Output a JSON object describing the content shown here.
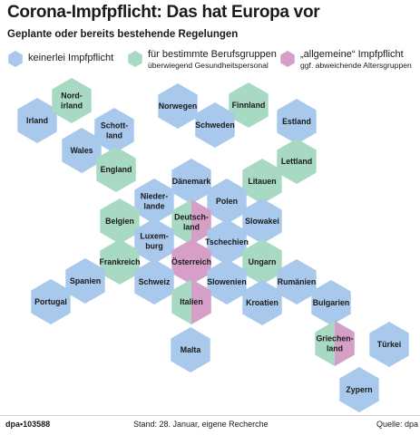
{
  "header": {
    "title": "Corona-Impfpflicht: Das hat Europa vor",
    "subtitle": "Geplante oder bereits bestehende Regelungen"
  },
  "legend": {
    "none": {
      "label": "keinerlei Impfpflicht"
    },
    "groups": {
      "label": "für bestimmte Berufsgruppen",
      "note": "überwiegend Gesundheitspersonal"
    },
    "general": {
      "label": "„allgemeine“ Impfpflicht",
      "note": "ggf. abweichende Altersgruppen"
    }
  },
  "colors": {
    "none": "#a8c8ec",
    "groups": "#a8d9c3",
    "general": "#d59fc8"
  },
  "countries": [
    {
      "name": [
        "Irland"
      ],
      "status": "none"
    },
    {
      "name": [
        "Nord-",
        "irland"
      ],
      "status": "groups"
    },
    {
      "name": [
        "Schott-",
        "land"
      ],
      "status": "none"
    },
    {
      "name": [
        "Wales"
      ],
      "status": "none"
    },
    {
      "name": [
        "England"
      ],
      "status": "groups"
    },
    {
      "name": [
        "Norwegen"
      ],
      "status": "none"
    },
    {
      "name": [
        "Finnland"
      ],
      "status": "groups"
    },
    {
      "name": [
        "Schweden"
      ],
      "status": "none"
    },
    {
      "name": [
        "Estland"
      ],
      "status": "none"
    },
    {
      "name": [
        "Lettland"
      ],
      "status": "groups"
    },
    {
      "name": [
        "Dänemark"
      ],
      "status": "none"
    },
    {
      "name": [
        "Litauen"
      ],
      "status": "groups"
    },
    {
      "name": [
        "Nieder-",
        "lande"
      ],
      "status": "none"
    },
    {
      "name": [
        "Polen"
      ],
      "status": "none"
    },
    {
      "name": [
        "Belgien"
      ],
      "status": "groups"
    },
    {
      "name": [
        "Deutsch-",
        "land"
      ],
      "status": "groups",
      "split": "general"
    },
    {
      "name": [
        "Slowakei"
      ],
      "status": "none"
    },
    {
      "name": [
        "Luxem-",
        "burg"
      ],
      "status": "none"
    },
    {
      "name": [
        "Tschechien"
      ],
      "status": "none"
    },
    {
      "name": [
        "Frankreich"
      ],
      "status": "groups"
    },
    {
      "name": [
        "Österreich"
      ],
      "status": "general"
    },
    {
      "name": [
        "Ungarn"
      ],
      "status": "groups"
    },
    {
      "name": [
        "Spanien"
      ],
      "status": "none"
    },
    {
      "name": [
        "Schweiz"
      ],
      "status": "none"
    },
    {
      "name": [
        "Slowenien"
      ],
      "status": "none"
    },
    {
      "name": [
        "Rumänien"
      ],
      "status": "none"
    },
    {
      "name": [
        "Portugal"
      ],
      "status": "none"
    },
    {
      "name": [
        "Italien"
      ],
      "status": "groups",
      "split": "general"
    },
    {
      "name": [
        "Kroatien"
      ],
      "status": "none"
    },
    {
      "name": [
        "Bulgarien"
      ],
      "status": "none"
    },
    {
      "name": [
        "Griechen-",
        "land"
      ],
      "status": "groups",
      "split": "general"
    },
    {
      "name": [
        "Türkei"
      ],
      "status": "none"
    },
    {
      "name": [
        "Malta"
      ],
      "status": "none"
    },
    {
      "name": [
        "Zypern"
      ],
      "status": "none"
    }
  ],
  "footer": {
    "agency": "dpa•103588",
    "note": "Stand: 28. Januar, eigene Recherche",
    "source": "Quelle: dpa"
  }
}
